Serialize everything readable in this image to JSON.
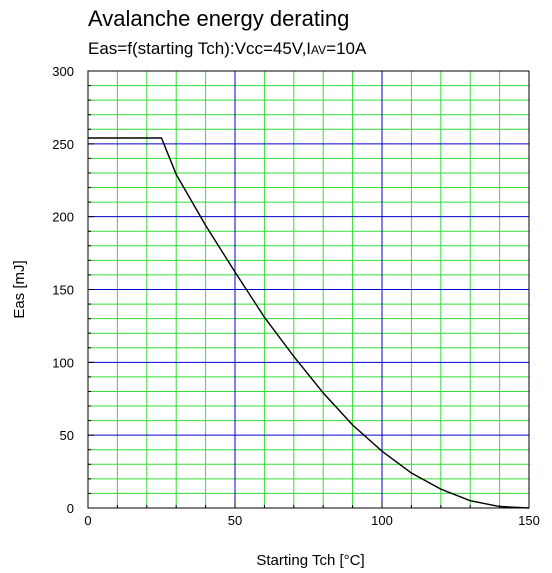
{
  "chart_data": {
    "type": "line",
    "title": "Avalanche energy derating",
    "subtitle": {
      "prefix": "Eas=f(starting Tch):Vcc=45V,I",
      "sub": "AV",
      "suffix": "=10A"
    },
    "xlabel": "Starting Tch [°C]",
    "ylabel": "Eas [mJ]",
    "xlim": [
      0,
      150
    ],
    "ylim": [
      0,
      300
    ],
    "xticks": [
      0,
      50,
      100,
      150
    ],
    "yticks": [
      0,
      50,
      100,
      150,
      200,
      250,
      300
    ],
    "grid": {
      "major": true,
      "minor": true,
      "major_color": "#0000cc",
      "minor_color": "#33dd33"
    },
    "series": [
      {
        "color": "#000000",
        "x": [
          0,
          25,
          30,
          40,
          50,
          60,
          70,
          80,
          90,
          100,
          110,
          120,
          130,
          140,
          150
        ],
        "y": [
          254,
          254,
          229,
          194,
          162,
          131,
          104,
          79,
          57,
          39,
          24,
          13,
          5,
          1,
          0
        ]
      }
    ]
  }
}
